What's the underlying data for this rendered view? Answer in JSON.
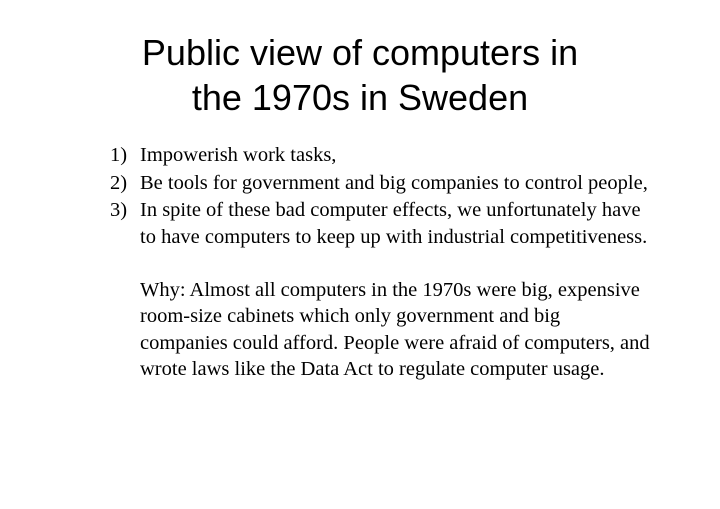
{
  "title": {
    "line1": "Public view of computers in",
    "line2": "the 1970s in Sweden"
  },
  "list": {
    "items": [
      {
        "marker": "1)",
        "text": "Impowerish work tasks,"
      },
      {
        "marker": "2)",
        "text": "Be tools for government and big companies to control people,"
      },
      {
        "marker": "3)",
        "text": "In spite of these bad computer effects, we unfortunately have to have computers to keep up with industrial competitiveness."
      }
    ]
  },
  "paragraph": {
    "text": "Why: Almost all computers in the 1970s were big, expensive room-size cabinets which only government and big companies could afford. People were afraid of computers, and wrote laws like the Data Act to regulate computer usage."
  },
  "styling": {
    "background_color": "#ffffff",
    "text_color": "#000000",
    "title_font": "Arial, Helvetica, sans-serif",
    "body_font": "Georgia, Times New Roman, serif",
    "title_fontsize": 36,
    "body_fontsize": 20.5
  }
}
